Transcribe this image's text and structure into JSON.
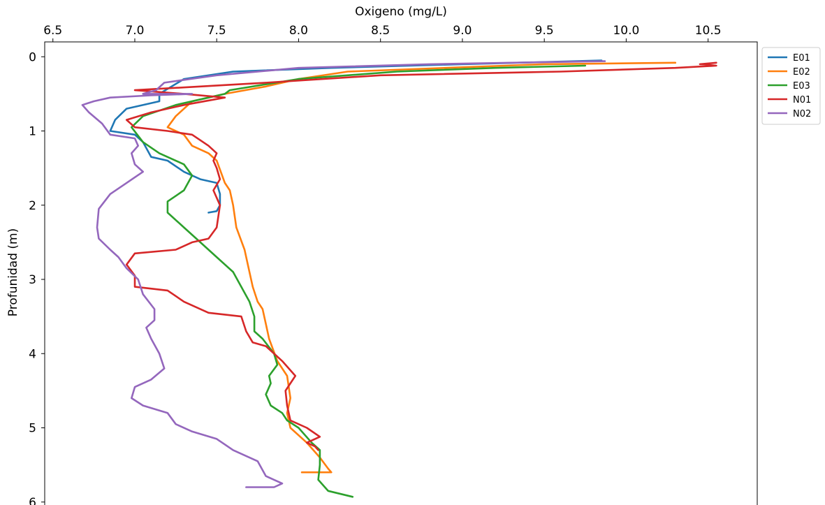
{
  "chart_data": {
    "type": "line",
    "xlabel": "Oxigeno (mg/L)",
    "ylabel": "Profunidad (m)",
    "xlim": [
      6.45,
      10.8
    ],
    "ylim": [
      6.2,
      -0.2
    ],
    "x_ticks": [
      "6.5",
      "7.0",
      "7.5",
      "8.0",
      "8.5",
      "9.0",
      "9.5",
      "10.0",
      "10.5"
    ],
    "y_ticks": [
      "0",
      "1",
      "2",
      "3",
      "4",
      "5",
      "6"
    ],
    "x_axis_position": "top",
    "y_axis_inverted": true,
    "grid": false,
    "legend_position": "outside-top-right",
    "series": [
      {
        "name": "E01",
        "color": "#1f77b4",
        "points": [
          [
            9.85,
            0.05
          ],
          [
            9.0,
            0.1
          ],
          [
            8.2,
            0.15
          ],
          [
            7.6,
            0.2
          ],
          [
            7.3,
            0.3
          ],
          [
            7.15,
            0.5
          ],
          [
            7.15,
            0.6
          ],
          [
            6.95,
            0.7
          ],
          [
            6.88,
            0.85
          ],
          [
            6.85,
            1.0
          ],
          [
            7.0,
            1.05
          ],
          [
            7.05,
            1.15
          ],
          [
            7.1,
            1.35
          ],
          [
            7.2,
            1.4
          ],
          [
            7.3,
            1.55
          ],
          [
            7.4,
            1.65
          ],
          [
            7.5,
            1.7
          ],
          [
            7.52,
            1.85
          ],
          [
            7.52,
            2.0
          ],
          [
            7.5,
            2.08
          ],
          [
            7.45,
            2.1
          ]
        ]
      },
      {
        "name": "E02",
        "color": "#ff7f0e",
        "points": [
          [
            10.3,
            0.08
          ],
          [
            9.5,
            0.1
          ],
          [
            8.9,
            0.15
          ],
          [
            8.3,
            0.2
          ],
          [
            8.0,
            0.3
          ],
          [
            7.8,
            0.4
          ],
          [
            7.55,
            0.5
          ],
          [
            7.45,
            0.55
          ],
          [
            7.35,
            0.6
          ],
          [
            7.25,
            0.8
          ],
          [
            7.2,
            0.95
          ],
          [
            7.3,
            1.05
          ],
          [
            7.35,
            1.2
          ],
          [
            7.45,
            1.3
          ],
          [
            7.5,
            1.4
          ],
          [
            7.55,
            1.7
          ],
          [
            7.58,
            1.8
          ],
          [
            7.6,
            2.0
          ],
          [
            7.62,
            2.3
          ],
          [
            7.67,
            2.6
          ],
          [
            7.7,
            2.9
          ],
          [
            7.72,
            3.1
          ],
          [
            7.75,
            3.3
          ],
          [
            7.78,
            3.4
          ],
          [
            7.8,
            3.6
          ],
          [
            7.82,
            3.8
          ],
          [
            7.87,
            4.1
          ],
          [
            7.93,
            4.3
          ],
          [
            7.95,
            4.6
          ],
          [
            7.93,
            4.8
          ],
          [
            7.95,
            5.0
          ],
          [
            8.05,
            5.2
          ],
          [
            8.13,
            5.4
          ],
          [
            8.18,
            5.55
          ],
          [
            8.2,
            5.6
          ],
          [
            8.02,
            5.6
          ]
        ]
      },
      {
        "name": "E03",
        "color": "#2ca02c",
        "points": [
          [
            9.75,
            0.12
          ],
          [
            9.2,
            0.15
          ],
          [
            8.6,
            0.2
          ],
          [
            8.0,
            0.3
          ],
          [
            7.58,
            0.45
          ],
          [
            7.55,
            0.5
          ],
          [
            7.45,
            0.55
          ],
          [
            7.25,
            0.65
          ],
          [
            7.05,
            0.8
          ],
          [
            6.98,
            0.95
          ],
          [
            7.05,
            1.15
          ],
          [
            7.15,
            1.3
          ],
          [
            7.3,
            1.45
          ],
          [
            7.35,
            1.6
          ],
          [
            7.3,
            1.8
          ],
          [
            7.2,
            1.95
          ],
          [
            7.2,
            2.1
          ],
          [
            7.3,
            2.3
          ],
          [
            7.4,
            2.5
          ],
          [
            7.5,
            2.7
          ],
          [
            7.6,
            2.9
          ],
          [
            7.65,
            3.1
          ],
          [
            7.7,
            3.3
          ],
          [
            7.73,
            3.5
          ],
          [
            7.73,
            3.7
          ],
          [
            7.78,
            3.8
          ],
          [
            7.85,
            4.0
          ],
          [
            7.87,
            4.15
          ],
          [
            7.82,
            4.3
          ],
          [
            7.83,
            4.4
          ],
          [
            7.8,
            4.55
          ],
          [
            7.83,
            4.7
          ],
          [
            7.9,
            4.8
          ],
          [
            7.93,
            4.9
          ],
          [
            8.0,
            5.0
          ],
          [
            8.08,
            5.2
          ],
          [
            8.13,
            5.3
          ],
          [
            8.13,
            5.5
          ],
          [
            8.12,
            5.7
          ],
          [
            8.18,
            5.85
          ],
          [
            8.33,
            5.93
          ]
        ]
      },
      {
        "name": "N01",
        "color": "#d62728",
        "points": [
          [
            10.55,
            0.08
          ],
          [
            10.45,
            0.1
          ],
          [
            10.55,
            0.12
          ],
          [
            10.3,
            0.15
          ],
          [
            9.6,
            0.2
          ],
          [
            8.5,
            0.25
          ],
          [
            7.8,
            0.35
          ],
          [
            7.4,
            0.4
          ],
          [
            7.0,
            0.45
          ],
          [
            7.3,
            0.5
          ],
          [
            7.55,
            0.55
          ],
          [
            7.3,
            0.65
          ],
          [
            7.1,
            0.75
          ],
          [
            6.95,
            0.85
          ],
          [
            7.0,
            0.95
          ],
          [
            7.2,
            1.0
          ],
          [
            7.35,
            1.05
          ],
          [
            7.45,
            1.2
          ],
          [
            7.5,
            1.3
          ],
          [
            7.48,
            1.4
          ],
          [
            7.5,
            1.5
          ],
          [
            7.52,
            1.65
          ],
          [
            7.48,
            1.8
          ],
          [
            7.52,
            2.0
          ],
          [
            7.5,
            2.3
          ],
          [
            7.45,
            2.45
          ],
          [
            7.35,
            2.5
          ],
          [
            7.25,
            2.6
          ],
          [
            7.0,
            2.65
          ],
          [
            6.95,
            2.8
          ],
          [
            7.0,
            2.95
          ],
          [
            7.0,
            3.1
          ],
          [
            7.2,
            3.15
          ],
          [
            7.3,
            3.3
          ],
          [
            7.45,
            3.45
          ],
          [
            7.65,
            3.5
          ],
          [
            7.68,
            3.7
          ],
          [
            7.72,
            3.85
          ],
          [
            7.8,
            3.9
          ],
          [
            7.9,
            4.1
          ],
          [
            7.98,
            4.3
          ],
          [
            7.92,
            4.5
          ],
          [
            7.93,
            4.7
          ],
          [
            7.95,
            4.9
          ],
          [
            8.05,
            5.0
          ],
          [
            8.13,
            5.12
          ],
          [
            8.05,
            5.2
          ],
          [
            8.1,
            5.25
          ],
          [
            8.12,
            5.3
          ]
        ]
      },
      {
        "name": "N02",
        "color": "#9467bd",
        "points": [
          [
            9.87,
            0.06
          ],
          [
            9.3,
            0.08
          ],
          [
            8.8,
            0.1
          ],
          [
            8.0,
            0.15
          ],
          [
            7.5,
            0.25
          ],
          [
            7.18,
            0.35
          ],
          [
            7.13,
            0.45
          ],
          [
            7.05,
            0.5
          ],
          [
            7.35,
            0.5
          ],
          [
            7.1,
            0.52
          ],
          [
            6.85,
            0.55
          ],
          [
            6.75,
            0.6
          ],
          [
            6.68,
            0.65
          ],
          [
            6.72,
            0.75
          ],
          [
            6.8,
            0.9
          ],
          [
            6.85,
            1.05
          ],
          [
            7.0,
            1.1
          ],
          [
            7.02,
            1.2
          ],
          [
            6.98,
            1.3
          ],
          [
            7.0,
            1.45
          ],
          [
            7.05,
            1.55
          ],
          [
            6.95,
            1.7
          ],
          [
            6.85,
            1.85
          ],
          [
            6.78,
            2.05
          ],
          [
            6.77,
            2.3
          ],
          [
            6.78,
            2.45
          ],
          [
            6.85,
            2.6
          ],
          [
            6.9,
            2.7
          ],
          [
            6.95,
            2.85
          ],
          [
            7.02,
            3.0
          ],
          [
            7.05,
            3.2
          ],
          [
            7.12,
            3.4
          ],
          [
            7.12,
            3.55
          ],
          [
            7.07,
            3.65
          ],
          [
            7.1,
            3.8
          ],
          [
            7.15,
            4.0
          ],
          [
            7.18,
            4.2
          ],
          [
            7.1,
            4.35
          ],
          [
            7.0,
            4.45
          ],
          [
            6.98,
            4.6
          ],
          [
            7.05,
            4.7
          ],
          [
            7.2,
            4.8
          ],
          [
            7.25,
            4.95
          ],
          [
            7.35,
            5.05
          ],
          [
            7.5,
            5.15
          ],
          [
            7.6,
            5.3
          ],
          [
            7.75,
            5.45
          ],
          [
            7.8,
            5.65
          ],
          [
            7.85,
            5.7
          ],
          [
            7.9,
            5.75
          ],
          [
            7.85,
            5.8
          ],
          [
            7.68,
            5.8
          ]
        ]
      }
    ]
  }
}
